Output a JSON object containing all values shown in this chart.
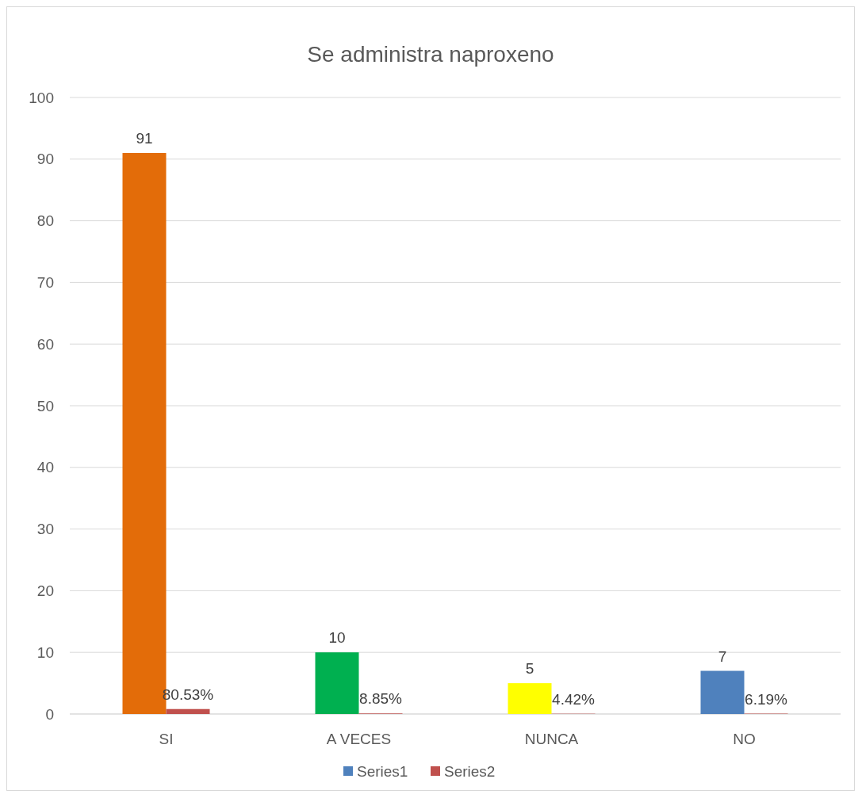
{
  "chart_data": {
    "type": "bar",
    "title": "Se administra naproxeno",
    "categories": [
      "SI",
      "A VECES",
      "NUNCA",
      "NO"
    ],
    "series": [
      {
        "name": "Series1",
        "color": "#4f81bd",
        "colors": [
          "#e36c09",
          "#00b050",
          "#ffff00",
          "#4f81bd"
        ],
        "values": [
          91,
          10,
          5,
          7
        ],
        "value_labels": [
          "91",
          "10",
          "5",
          "7"
        ]
      },
      {
        "name": "Series2",
        "color": "#c0504d",
        "values": [
          0.8053,
          0.0885,
          0.0442,
          0.0619
        ],
        "value_labels": [
          "80.53%",
          "8.85%",
          "4.42%",
          "6.19%"
        ]
      }
    ],
    "ylim": [
      0,
      100
    ],
    "yticks": [
      0,
      10,
      20,
      30,
      40,
      50,
      60,
      70,
      80,
      90,
      100
    ],
    "grid": "y",
    "legend": "bottom"
  }
}
